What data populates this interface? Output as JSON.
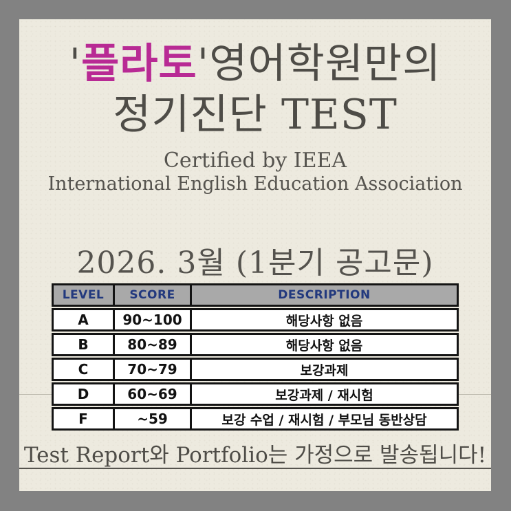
{
  "colors": {
    "frame_gray": "#828282",
    "paper_cream": "#edeadf",
    "title_text": "#4e4c47",
    "brand_magenta": "#b82a94",
    "table_header_bg": "#a9a9a9",
    "table_header_text": "#22397e",
    "table_border": "#141414"
  },
  "title": {
    "quote_open": "'",
    "brand": "플라토",
    "quote_close": "'",
    "line1_rest": "영어학원만의",
    "line2": "정기진단 TEST"
  },
  "certification": {
    "line1": "Certified by IEEA",
    "line2": "International English Education Association"
  },
  "announcement": {
    "date_line": "2026. 3월 (1분기 공고문)"
  },
  "table": {
    "headers": [
      "LEVEL",
      "SCORE",
      "DESCRIPTION"
    ],
    "rows": [
      {
        "level": "A",
        "score": "90~100",
        "description": "해당사항 없음"
      },
      {
        "level": "B",
        "score": "80~89",
        "description": "해당사항 없음"
      },
      {
        "level": "C",
        "score": "70~79",
        "description": "보강과제"
      },
      {
        "level": "D",
        "score": "60~69",
        "description": "보강과제  /  재시험"
      },
      {
        "level": "F",
        "score": "~59",
        "description": "보강 수업  /  재시험 / 부모님 동반상담"
      }
    ]
  },
  "footer": {
    "notice": "Test Report와 Portfolio는 가정으로 발송됩니다!"
  }
}
